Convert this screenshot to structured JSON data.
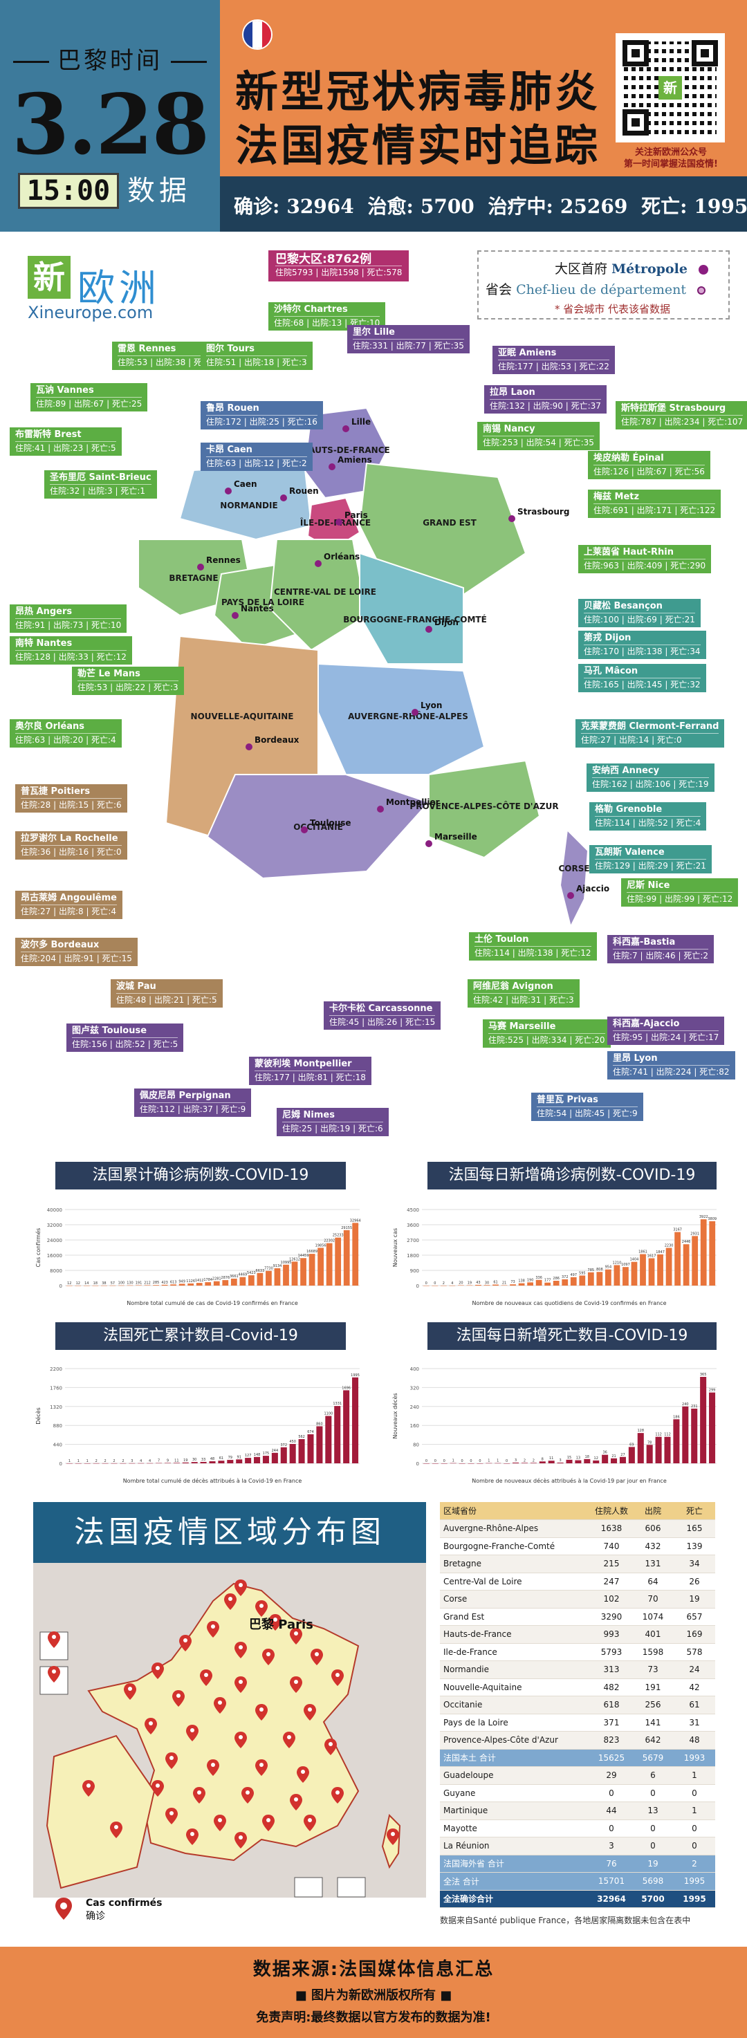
{
  "header": {
    "paris_time_label": "巴黎时间",
    "date": "3.28",
    "time": "15:00",
    "time_suffix": "数据",
    "title_line1": "新型冠状病毒肺炎",
    "title_line2": "法国疫情实时追踪",
    "qr_caption_line1": "关注新欧洲公众号",
    "qr_caption_line2": "第一时间掌握法国疫情!",
    "qr_logo": "新",
    "stats": {
      "confirmed_label": "确诊:",
      "confirmed": "32964",
      "cured_label": "治愈:",
      "cured": "5700",
      "treating_label": "治疗中:",
      "treating": "25269",
      "deaths_label": "死亡:",
      "deaths": "1995"
    },
    "flag_colors": [
      "#1f3f9c",
      "#ffffff",
      "#d7263d"
    ]
  },
  "brand": {
    "xin": "新",
    "ouzhou": "欧洲",
    "url": "Xineurope.com"
  },
  "legend": {
    "capital_label": "大区首府",
    "capital_fr": "Métropole",
    "prefecture_label": "省会",
    "prefecture_fr": "Chef-lieu de département",
    "note": "* 省会城市 代表该省数据"
  },
  "ile_de_france": {
    "title": "巴黎大区:8762例",
    "values": "住院5793 | 出院1598 | 死亡:578"
  },
  "map_labels": [
    {
      "name": "沙特尔 Chartres",
      "values": "住院:68 | 出院:13 | 死亡:10",
      "color": "green"
    },
    {
      "name": "里尔 Lille",
      "values": "住院:331 | 出院:77 | 死亡:35",
      "color": "purple"
    },
    {
      "name": "雷恩 Rennes",
      "values": "住院:53 | 出院:38 | 死亡:3",
      "color": "green"
    },
    {
      "name": "图尔 Tours",
      "values": "住院:51 | 出院:18 | 死亡:3",
      "color": "green"
    },
    {
      "name": "亚眠 Amiens",
      "values": "住院:177 | 出院:53 | 死亡:22",
      "color": "purple"
    },
    {
      "name": "瓦讷 Vannes",
      "values": "住院:89 | 出院:67 | 死亡:25",
      "color": "green"
    },
    {
      "name": "鲁昂 Rouen",
      "values": "住院:172 | 出院:25 | 死亡:16",
      "color": "blue"
    },
    {
      "name": "拉昂 Laon",
      "values": "住院:132 | 出院:90 | 死亡:37",
      "color": "purple"
    },
    {
      "name": "斯特拉斯堡 Strasbourg",
      "values": "住院:787 | 出院:234 | 死亡:107",
      "color": "green"
    },
    {
      "name": "布雷斯特 Brest",
      "values": "住院:41 | 出院:23 | 死亡:5",
      "color": "green"
    },
    {
      "name": "卡昂 Caen",
      "values": "住院:63 | 出院:12 | 死亡:2",
      "color": "blue"
    },
    {
      "name": "南锡 Nancy",
      "values": "住院:253 | 出院:54 | 死亡:35",
      "color": "green"
    },
    {
      "name": "埃皮纳勒 Épinal",
      "values": "住院:126 | 出院:67 | 死亡:56",
      "color": "green"
    },
    {
      "name": "圣布里厄 Saint-Brieuc",
      "values": "住院:32 | 出院:3 | 死亡:1",
      "color": "green"
    },
    {
      "name": "梅兹 Metz",
      "values": "住院:691 | 出院:171 | 死亡:122",
      "color": "green"
    },
    {
      "name": "上莱茵省 Haut-Rhin",
      "values": "住院:963 | 出院:409 | 死亡:290",
      "color": "green"
    },
    {
      "name": "昂热 Angers",
      "values": "住院:91 | 出院:73 | 死亡:10",
      "color": "green"
    },
    {
      "name": "贝藏松 Besançon",
      "values": "住院:100 | 出院:69 | 死亡:21",
      "color": "teal"
    },
    {
      "name": "南特 Nantes",
      "values": "住院:128 | 出院:33 | 死亡:12",
      "color": "green"
    },
    {
      "name": "第戎 Dijon",
      "values": "住院:170 | 出院:138 | 死亡:34",
      "color": "teal"
    },
    {
      "name": "勒芒 Le Mans",
      "values": "住院:53 | 出院:22 | 死亡:3",
      "color": "green"
    },
    {
      "name": "马孔 Mâcon",
      "values": "住院:165 | 出院:145 | 死亡:32",
      "color": "teal"
    },
    {
      "name": "克莱蒙费朗 Clermont-Ferrand",
      "values": "住院:27 | 出院:14 | 死亡:0",
      "color": "teal"
    },
    {
      "name": "奥尔良 Orléans",
      "values": "住院:63 | 出院:20 | 死亡:4",
      "color": "green"
    },
    {
      "name": "安纳西 Annecy",
      "values": "住院:162 | 出院:106 | 死亡:19",
      "color": "teal"
    },
    {
      "name": "普瓦捷 Poitiers",
      "values": "住院:28 | 出院:15 | 死亡:6",
      "color": "brown"
    },
    {
      "name": "格勒 Grenoble",
      "values": "住院:114 | 出院:52 | 死亡:4",
      "color": "teal"
    },
    {
      "name": "拉罗谢尔 La Rochelle",
      "values": "住院:36 | 出院:16 | 死亡:0",
      "color": "brown"
    },
    {
      "name": "瓦朗斯 Valence",
      "values": "住院:129 | 出院:29 | 死亡:21",
      "color": "teal"
    },
    {
      "name": "尼斯 Nice",
      "values": "住院:99 | 出院:99 | 死亡:12",
      "color": "green"
    },
    {
      "name": "昂古莱姆 Angoulême",
      "values": "住院:27 | 出院:8 | 死亡:4",
      "color": "brown"
    },
    {
      "name": "土伦 Toulon",
      "values": "住院:114 | 出院:138 | 死亡:12",
      "color": "green"
    },
    {
      "name": "科西嘉-Bastia",
      "values": "住院:7 | 出院:46 | 死亡:2",
      "color": "purple"
    },
    {
      "name": "波尔多 Bordeaux",
      "values": "住院:204 | 出院:91 | 死亡:15",
      "color": "brown"
    },
    {
      "name": "阿维尼翁 Avignon",
      "values": "住院:42 | 出院:31 | 死亡:3",
      "color": "green"
    },
    {
      "name": "波城 Pau",
      "values": "住院:48 | 出院:21 | 死亡:5",
      "color": "brown"
    },
    {
      "name": "马赛 Marseille",
      "values": "住院:525 | 出院:334 | 死亡:20",
      "color": "green"
    },
    {
      "name": "科西嘉-Ajaccio",
      "values": "住院:95 | 出院:24 | 死亡:17",
      "color": "purple"
    },
    {
      "name": "卡尔卡松 Carcassonne",
      "values": "住院:45 | 出院:26 | 死亡:15",
      "color": "purple"
    },
    {
      "name": "图卢兹 Toulouse",
      "values": "住院:156 | 出院:52 | 死亡:5",
      "color": "purple"
    },
    {
      "name": "里昂 Lyon",
      "values": "住院:741 | 出院:224 | 死亡:82",
      "color": "blue"
    },
    {
      "name": "蒙彼利埃 Montpellier",
      "values": "住院:177 | 出院:81 | 死亡:18",
      "color": "purple"
    },
    {
      "name": "普里瓦 Privas",
      "values": "住院:54 | 出院:45 | 死亡:9",
      "color": "blue"
    },
    {
      "name": "佩皮尼昂 Perpignan",
      "values": "住院:112 | 出院:37 | 死亡:9",
      "color": "purple"
    },
    {
      "name": "尼姆 Nimes",
      "values": "住院:25 | 出院:19 | 死亡:6",
      "color": "purple"
    }
  ],
  "region_names": [
    "HAUTS-DE-FRANCE",
    "NORMANDIE",
    "ÎLE-DE-FRANCE",
    "GRAND EST",
    "BRETAGNE",
    "PAYS DE LA LOIRE",
    "CENTRE-VAL DE LOIRE",
    "BOURGOGNE-FRANCHE-COMTÉ",
    "NOUVELLE-AQUITAINE",
    "AUVERGNE-RHÔNE-ALPES",
    "OCCITANIE",
    "PROVENCE-ALPES-CÔTE D'AZUR",
    "CORSE"
  ],
  "city_names": [
    "Lille",
    "Amiens",
    "Rouen",
    "Caen",
    "Paris",
    "Rennes",
    "Nantes",
    "Orléans",
    "Dijon",
    "Lyon",
    "Bordeaux",
    "Toulouse",
    "Montpellier",
    "Marseille",
    "Strasbourg",
    "Ajaccio"
  ],
  "chart_titles": {
    "cum_cases": "法国累计确诊病例数-COVID-19",
    "daily_cases": "法国每日新增确诊病例数-COVID-19",
    "cum_deaths": "法国死亡累计数目-Covid-19",
    "daily_deaths": "法国每日新增死亡数目-COVID-19"
  },
  "chart_data": [
    {
      "type": "bar",
      "title": "法国累计确诊病例数-COVID-19",
      "ylabel": "Cas confirmés",
      "xlabel": "Nombre total cumulé de cas de Covid-19 confirmés en France",
      "ylim": [
        0,
        40000
      ],
      "color": "#e8743b",
      "values": [
        12,
        12,
        14,
        18,
        38,
        57,
        100,
        130,
        191,
        212,
        285,
        423,
        613,
        949,
        1126,
        1412,
        1784,
        2281,
        2876,
        3661,
        4469,
        5423,
        6633,
        7730,
        9134,
        10995,
        12612,
        14459,
        16689,
        19856,
        22302,
        25233,
        29155,
        32964
      ]
    },
    {
      "type": "bar",
      "title": "法国每日新增确诊病例数-COVID-19",
      "ylabel": "Nouveaux cas",
      "xlabel": "Nombre de nouveaux cas quotidiens de Covid-19 confirmés en France",
      "ylim": [
        0,
        4500
      ],
      "color": "#e8743b",
      "values": [
        0,
        0,
        2,
        4,
        20,
        19,
        43,
        30,
        61,
        21,
        73,
        138,
        190,
        336,
        177,
        286,
        372,
        497,
        595,
        785,
        808,
        954,
        1210,
        1097,
        1404,
        1861,
        1617,
        1847,
        2230,
        3167,
        2446,
        2931,
        3922,
        3809
      ]
    },
    {
      "type": "bar",
      "title": "法国死亡累计数目-Covid-19",
      "ylabel": "Décès",
      "xlabel": "Nombre total cumulé de décès attribués à la Covid-19 en France",
      "ylim": [
        0,
        2200
      ],
      "color": "#a31b3a",
      "values": [
        1,
        1,
        1,
        2,
        2,
        2,
        2,
        3,
        4,
        4,
        7,
        9,
        11,
        19,
        30,
        33,
        48,
        61,
        79,
        91,
        127,
        148,
        175,
        244,
        372,
        450,
        562,
        674,
        860,
        1100,
        1331,
        1696,
        1995
      ]
    },
    {
      "type": "bar",
      "title": "法国每日新增死亡数目-COVID-19",
      "ylabel": "Nouveaux décès",
      "xlabel": "Nombre de nouveaux décès attribués à la Covid-19 par jour en France",
      "ylim": [
        0,
        400
      ],
      "color": "#a31b3a",
      "values": [
        0,
        0,
        0,
        1,
        0,
        0,
        0,
        1,
        1,
        0,
        3,
        2,
        2,
        8,
        11,
        3,
        15,
        13,
        18,
        12,
        36,
        21,
        27,
        69,
        128,
        78,
        112,
        112,
        186,
        240,
        231,
        365,
        299
      ]
    }
  ],
  "distribution": {
    "title": "法国疫情区域分布图",
    "paris_label": "巴黎 Paris",
    "legend_fr": "Cas confirmés",
    "legend_cn": "确诊"
  },
  "table": {
    "headers": [
      "区域省份",
      "住院人数",
      "出院",
      "死亡"
    ],
    "rows": [
      {
        "cells": [
          "Auvergne-Rhône-Alpes",
          "1638",
          "606",
          "165"
        ],
        "kind": "odd"
      },
      {
        "cells": [
          "Bourgogne-Franche-Comté",
          "740",
          "432",
          "139"
        ],
        "kind": "even"
      },
      {
        "cells": [
          "Bretagne",
          "215",
          "131",
          "34"
        ],
        "kind": "odd"
      },
      {
        "cells": [
          "Centre-Val de Loire",
          "247",
          "64",
          "26"
        ],
        "kind": "even"
      },
      {
        "cells": [
          "Corse",
          "102",
          "70",
          "19"
        ],
        "kind": "odd"
      },
      {
        "cells": [
          "Grand Est",
          "3290",
          "1074",
          "657"
        ],
        "kind": "even"
      },
      {
        "cells": [
          "Hauts-de-France",
          "993",
          "401",
          "169"
        ],
        "kind": "odd"
      },
      {
        "cells": [
          "Ile-de-France",
          "5793",
          "1598",
          "578"
        ],
        "kind": "even"
      },
      {
        "cells": [
          "Normandie",
          "313",
          "73",
          "24"
        ],
        "kind": "odd"
      },
      {
        "cells": [
          "Nouvelle-Aquitaine",
          "482",
          "191",
          "42"
        ],
        "kind": "even"
      },
      {
        "cells": [
          "Occitanie",
          "618",
          "256",
          "61"
        ],
        "kind": "odd"
      },
      {
        "cells": [
          "Pays de la Loire",
          "371",
          "141",
          "31"
        ],
        "kind": "even"
      },
      {
        "cells": [
          "Provence-Alpes-Côte d'Azur",
          "823",
          "642",
          "48"
        ],
        "kind": "odd"
      },
      {
        "cells": [
          "法国本土 合计",
          "15625",
          "5679",
          "1993"
        ],
        "kind": "sub"
      },
      {
        "cells": [
          "Guadeloupe",
          "29",
          "6",
          "1"
        ],
        "kind": "odd"
      },
      {
        "cells": [
          "Guyane",
          "0",
          "0",
          "0"
        ],
        "kind": "even"
      },
      {
        "cells": [
          "Martinique",
          "44",
          "13",
          "1"
        ],
        "kind": "odd"
      },
      {
        "cells": [
          "Mayotte",
          "0",
          "0",
          "0"
        ],
        "kind": "even"
      },
      {
        "cells": [
          "La Réunion",
          "3",
          "0",
          "0"
        ],
        "kind": "odd"
      },
      {
        "cells": [
          "法国海外省 合计",
          "76",
          "19",
          "2"
        ],
        "kind": "sub"
      },
      {
        "cells": [
          "全法 合计",
          "15701",
          "5698",
          "1995"
        ],
        "kind": "sub"
      },
      {
        "cells": [
          "全法确诊合计",
          "32964",
          "5700",
          "1995"
        ],
        "kind": "tot"
      }
    ],
    "note": "数据来自Santé publique France，各地居家隔离数据未包含在表中"
  },
  "footer": {
    "line1": "数据来源:法国媒体信息汇总",
    "line2": "■ 图片为新欧洲版权所有 ■",
    "line3": "免责声明:最终数据以官方发布的数据为准!"
  }
}
